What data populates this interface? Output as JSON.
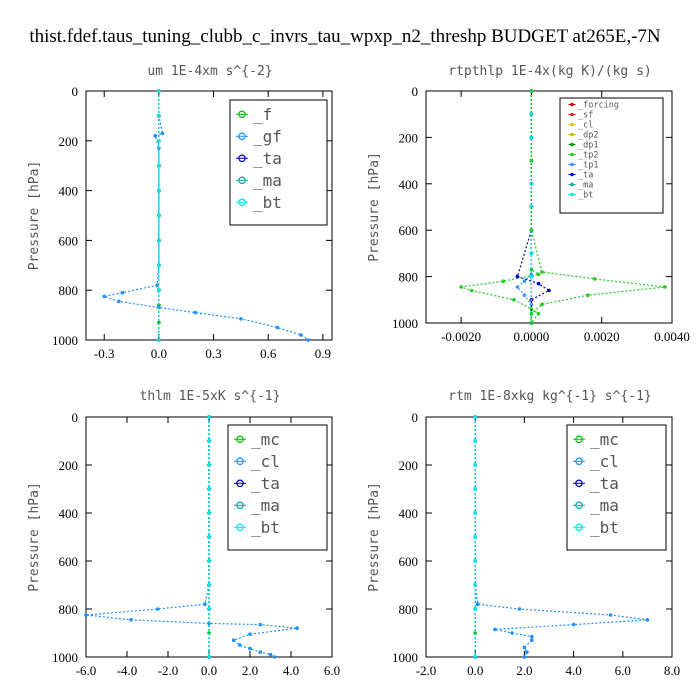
{
  "title": "thist.fdef.taus_tuning_clubb_c_invrs_tau_wpxp_n2_threshp  BUDGET at265E,-7N",
  "chart_data": [
    {
      "type": "line",
      "title": "um   1E-4xm s^{-2}",
      "ylabel": "Pressure [hPa]",
      "xlim": [
        -0.4,
        0.95
      ],
      "ylim": [
        0,
        1000
      ],
      "y_inverted": true,
      "xticks": [
        "-0.3",
        "0.0",
        "0.3",
        "0.6",
        "0.9"
      ],
      "xtick_values": [
        -0.3,
        0,
        0.3,
        0.6,
        0.9
      ],
      "yticks": [
        "0",
        "200",
        "400",
        "600",
        "800",
        "1000"
      ],
      "ytick_values": [
        0,
        200,
        400,
        600,
        800,
        1000
      ],
      "legend": {
        "placement": "top-right",
        "style": "large"
      },
      "series": [
        {
          "name": "_f",
          "color": "#00c000",
          "x": [
            0,
            0,
            0,
            0,
            0,
            0,
            0,
            0,
            0,
            0,
            0,
            0
          ],
          "y": [
            0,
            100,
            200,
            300,
            400,
            500,
            600,
            700,
            800,
            860,
            930,
            1000
          ]
        },
        {
          "name": "_gf",
          "color": "#1e90ff",
          "x": [
            0,
            0,
            0.02,
            -0.02,
            0,
            0,
            0,
            0,
            0,
            0,
            -0.01,
            -0.2,
            -0.3,
            -0.22,
            0,
            0.2,
            0.45,
            0.65,
            0.78,
            0.82
          ],
          "y": [
            0,
            100,
            170,
            180,
            230,
            300,
            400,
            500,
            600,
            700,
            780,
            810,
            825,
            845,
            870,
            890,
            915,
            950,
            980,
            1000
          ]
        },
        {
          "name": "_ta",
          "color": "#0000cc",
          "x": [
            0,
            0,
            0,
            0,
            0,
            0,
            0,
            0,
            0,
            0
          ],
          "y": [
            0,
            100,
            200,
            300,
            400,
            500,
            600,
            700,
            800,
            1000
          ]
        },
        {
          "name": "_ma",
          "color": "#00aaaa",
          "x": [
            0,
            0,
            0,
            0,
            0,
            0,
            0,
            0,
            0,
            0
          ],
          "y": [
            0,
            100,
            200,
            300,
            400,
            500,
            600,
            700,
            800,
            1000
          ]
        },
        {
          "name": "_bt",
          "color": "#00e5ee",
          "x": [
            0,
            0,
            0,
            0,
            0,
            0,
            0,
            0,
            0,
            0
          ],
          "y": [
            0,
            100,
            200,
            300,
            400,
            500,
            600,
            700,
            800,
            1000
          ]
        }
      ]
    },
    {
      "type": "line",
      "title": "rtpthlp   1E-4x(kg K)/(kg s)",
      "ylabel": "Pressure [hPa]",
      "xlim": [
        -0.003,
        0.004
      ],
      "ylim": [
        0,
        1000
      ],
      "y_inverted": true,
      "xticks": [
        "-0.0020",
        "0.0000",
        "0.0020",
        "0.0040"
      ],
      "xtick_values": [
        -0.002,
        0,
        0.002,
        0.004
      ],
      "yticks": [
        "0",
        "200",
        "400",
        "600",
        "800",
        "1000"
      ],
      "ytick_values": [
        0,
        200,
        400,
        600,
        800,
        1000
      ],
      "legend": {
        "placement": "top-right",
        "style": "small"
      },
      "series": [
        {
          "name": "_forcing",
          "color": "#cc0000",
          "x": [
            0,
            0,
            0,
            0,
            0,
            0,
            0,
            0,
            0,
            0
          ],
          "y": [
            0,
            100,
            200,
            300,
            400,
            500,
            600,
            700,
            800,
            1000
          ]
        },
        {
          "name": "_sf",
          "color": "#ee2222",
          "x": [
            0,
            0,
            0,
            0,
            0,
            0,
            0,
            0,
            0,
            0
          ],
          "y": [
            0,
            100,
            200,
            300,
            400,
            500,
            600,
            700,
            800,
            1000
          ]
        },
        {
          "name": "_cl",
          "color": "#e0c000",
          "x": [
            0,
            0,
            0,
            0,
            0,
            0,
            0,
            0,
            0,
            0
          ],
          "y": [
            0,
            100,
            200,
            300,
            400,
            500,
            600,
            700,
            800,
            1000
          ]
        },
        {
          "name": "_dp2",
          "color": "#bbbb00",
          "x": [
            0,
            0,
            0,
            0,
            0,
            0,
            0,
            0,
            0,
            0
          ],
          "y": [
            0,
            100,
            200,
            300,
            400,
            500,
            600,
            700,
            800,
            1000
          ]
        },
        {
          "name": "_dp1",
          "color": "#009900",
          "x": [
            0,
            0,
            0,
            0,
            0,
            0,
            0,
            0,
            0,
            0
          ],
          "y": [
            0,
            100,
            200,
            300,
            400,
            500,
            600,
            700,
            800,
            1000
          ]
        },
        {
          "name": "_tp2",
          "color": "#22cc22",
          "x": [
            0,
            0,
            0,
            0,
            0.0002,
            -0.0008,
            -0.002,
            -0.0017,
            -0.0005,
            0,
            0.0002,
            0
          ],
          "y": [
            0,
            300,
            600,
            770,
            790,
            820,
            845,
            860,
            900,
            940,
            960,
            1000
          ]
        },
        {
          "name": "_tp1",
          "color": "#3399ff",
          "x": [
            0,
            0,
            0,
            0,
            -0.0002,
            -0.0004,
            -0.0002,
            0,
            0
          ],
          "y": [
            0,
            300,
            600,
            790,
            820,
            845,
            880,
            920,
            1000
          ]
        },
        {
          "name": "_ta",
          "color": "#0000cc",
          "x": [
            0,
            0,
            0,
            -0.0004,
            0.0002,
            0.0005,
            0,
            0
          ],
          "y": [
            0,
            300,
            600,
            800,
            830,
            860,
            900,
            1000
          ]
        },
        {
          "name": "_ma",
          "color": "#00aaaa",
          "x": [
            0,
            0,
            0,
            0,
            0,
            0,
            0,
            0,
            0,
            0
          ],
          "y": [
            0,
            100,
            200,
            300,
            400,
            500,
            600,
            700,
            800,
            1000
          ]
        },
        {
          "name": "_bt",
          "color": "#00e5ee",
          "x": [
            0,
            0,
            0,
            0,
            0,
            0,
            0,
            0,
            0,
            0
          ],
          "y": [
            0,
            100,
            200,
            300,
            400,
            500,
            600,
            700,
            800,
            1000
          ]
        },
        {
          "name": "",
          "color": "#22cc22",
          "x": [
            0,
            0,
            0,
            0.0003,
            0.0018,
            0.0038,
            0.0016,
            0.0003,
            0,
            0
          ],
          "y": [
            0,
            300,
            600,
            780,
            810,
            845,
            880,
            920,
            960,
            1000
          ]
        }
      ]
    },
    {
      "type": "line",
      "title": "thlm   1E-5xK s^{-1}",
      "ylabel": "Pressure [hPa]",
      "xlim": [
        -6,
        6
      ],
      "ylim": [
        0,
        1000
      ],
      "y_inverted": true,
      "xticks": [
        "-6.0",
        "-4.0",
        "-2.0",
        "0.0",
        "2.0",
        "4.0",
        "6.0"
      ],
      "xtick_values": [
        -6,
        -4,
        -2,
        0,
        2,
        4,
        6
      ],
      "yticks": [
        "0",
        "200",
        "400",
        "600",
        "800",
        "1000"
      ],
      "ytick_values": [
        0,
        200,
        400,
        600,
        800,
        1000
      ],
      "legend": {
        "placement": "top-right",
        "style": "large"
      },
      "series": [
        {
          "name": "_mc",
          "color": "#00c000",
          "x": [
            0,
            0,
            0,
            0,
            0,
            0,
            0,
            0,
            0,
            0,
            0
          ],
          "y": [
            0,
            100,
            200,
            300,
            400,
            500,
            600,
            700,
            800,
            900,
            1000
          ]
        },
        {
          "name": "_cl",
          "color": "#1e90ff",
          "x": [
            0,
            0,
            0,
            0,
            0,
            0,
            0,
            0,
            -0.2,
            -2.5,
            -6,
            -3.8,
            0,
            2.5,
            4.3,
            2,
            1.2,
            1.5,
            2,
            2.5,
            3,
            3.2
          ],
          "y": [
            0,
            100,
            200,
            300,
            400,
            500,
            600,
            700,
            780,
            800,
            825,
            845,
            860,
            865,
            880,
            905,
            930,
            950,
            965,
            980,
            990,
            1000
          ]
        },
        {
          "name": "_ta",
          "color": "#0000cc",
          "x": [
            0,
            0,
            0,
            0,
            0,
            0,
            0,
            0,
            0,
            0
          ],
          "y": [
            0,
            100,
            200,
            300,
            400,
            500,
            600,
            700,
            800,
            1000
          ]
        },
        {
          "name": "_ma",
          "color": "#00aaaa",
          "x": [
            0,
            0,
            0,
            0,
            0,
            0,
            0,
            0,
            0,
            0
          ],
          "y": [
            0,
            100,
            200,
            300,
            400,
            500,
            600,
            700,
            800,
            1000
          ]
        },
        {
          "name": "_bt",
          "color": "#00e5ee",
          "x": [
            0,
            0,
            0,
            0,
            0,
            0,
            0,
            0,
            0,
            0
          ],
          "y": [
            0,
            100,
            200,
            300,
            400,
            500,
            600,
            700,
            800,
            1000
          ]
        }
      ]
    },
    {
      "type": "line",
      "title": "rtm   1E-8xkg kg^{-1} s^{-1}",
      "ylabel": "Pressure [hPa]",
      "xlim": [
        -2,
        8
      ],
      "ylim": [
        0,
        1000
      ],
      "y_inverted": true,
      "xticks": [
        "-2.0",
        "0.0",
        "2.0",
        "4.0",
        "6.0",
        "8.0"
      ],
      "xtick_values": [
        -2,
        0,
        2,
        4,
        6,
        8
      ],
      "yticks": [
        "0",
        "200",
        "400",
        "600",
        "800",
        "1000"
      ],
      "ytick_values": [
        0,
        200,
        400,
        600,
        800,
        1000
      ],
      "legend": {
        "placement": "top-right",
        "style": "large"
      },
      "series": [
        {
          "name": "_mc",
          "color": "#00c000",
          "x": [
            0,
            0,
            0,
            0,
            0,
            0,
            0,
            0,
            0,
            0,
            0
          ],
          "y": [
            0,
            100,
            200,
            300,
            400,
            500,
            600,
            700,
            800,
            900,
            1000
          ]
        },
        {
          "name": "_cl",
          "color": "#1e90ff",
          "x": [
            0,
            0,
            0,
            0,
            0,
            0,
            0,
            0,
            0.1,
            1.8,
            5.5,
            7,
            4,
            0.8,
            1.5,
            2.3,
            2.3,
            2,
            2.1,
            2
          ],
          "y": [
            0,
            100,
            200,
            300,
            400,
            500,
            600,
            700,
            780,
            800,
            825,
            845,
            865,
            885,
            900,
            915,
            930,
            960,
            980,
            1000
          ]
        },
        {
          "name": "_ta",
          "color": "#0000cc",
          "x": [
            0,
            0,
            0,
            0,
            0,
            0,
            0,
            0,
            0,
            0
          ],
          "y": [
            0,
            100,
            200,
            300,
            400,
            500,
            600,
            700,
            800,
            1000
          ]
        },
        {
          "name": "_ma",
          "color": "#00aaaa",
          "x": [
            0,
            0,
            0,
            0,
            0,
            0,
            0,
            0,
            0,
            0
          ],
          "y": [
            0,
            100,
            200,
            300,
            400,
            500,
            600,
            700,
            800,
            1000
          ]
        },
        {
          "name": "_bt",
          "color": "#00e5ee",
          "x": [
            0,
            0,
            0,
            0,
            0,
            0,
            0,
            0,
            0,
            0
          ],
          "y": [
            0,
            100,
            200,
            300,
            400,
            500,
            600,
            700,
            800,
            1000
          ]
        }
      ]
    }
  ]
}
